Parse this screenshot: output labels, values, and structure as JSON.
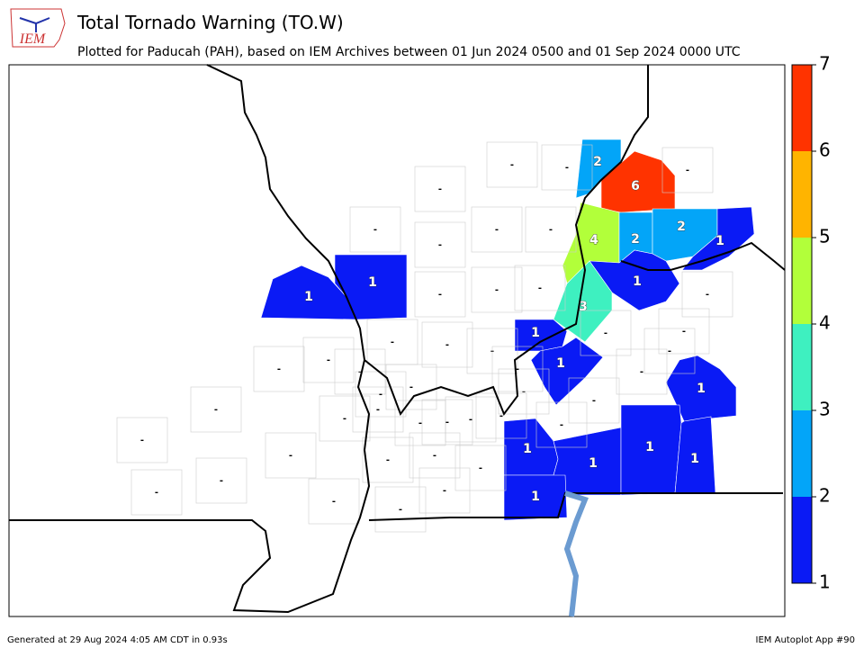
{
  "chart_data": {
    "type": "choropleth",
    "logo": "IEM",
    "title": "Total Tornado Warning (TO.W)",
    "subtitle": "Plotted for Paducah (PAH), based on IEM Archives  between 01 Jun 2024 0500 and 01 Sep 2024 0000 UTC",
    "footer_left": "Generated at 29 Aug 2024 4:05 AM CDT in 0.93s",
    "footer_right": "IEM Autoplot App #90",
    "values": [
      2,
      6,
      4,
      2,
      2,
      1,
      1,
      3,
      1,
      1,
      1,
      1,
      1,
      1,
      1,
      1,
      1,
      1,
      null,
      null,
      null,
      null,
      null,
      null,
      null,
      null,
      null,
      null,
      null,
      null,
      null,
      null,
      null,
      null,
      null,
      null,
      null,
      null,
      null,
      null,
      null,
      null,
      null,
      null,
      null,
      null,
      null,
      null,
      null,
      null,
      null,
      null,
      null,
      null,
      null,
      null,
      null,
      null,
      null,
      null,
      null,
      null,
      null
    ],
    "value_labels": [
      "2",
      "6",
      "4",
      "2",
      "2",
      "1",
      "1",
      "3",
      "1",
      "1",
      "1",
      "1",
      "1",
      "1",
      "1",
      "1",
      "1",
      "1",
      "-",
      "-",
      "-",
      "-",
      "-",
      "-",
      "-",
      "-",
      "-",
      "-",
      "-",
      "-",
      "-",
      "-",
      "-",
      "-",
      "-",
      "-",
      "-",
      "-",
      "-",
      "-",
      "-",
      "-",
      "-",
      "-",
      "-",
      "-",
      "-",
      "-",
      "-",
      "-",
      "-",
      "-",
      "-",
      "-",
      "-",
      "-",
      "-",
      "-",
      "-",
      "-",
      "-",
      "-",
      "-"
    ],
    "colorbar": {
      "lim": [
        1,
        7
      ],
      "ticks": [
        1,
        2,
        3,
        4,
        5,
        6,
        7
      ],
      "colors": [
        "#0a1af5",
        "#03a5f8",
        "#3ef0c0",
        "#b2ff3a",
        "#ffb400",
        "#ff3300"
      ]
    }
  }
}
